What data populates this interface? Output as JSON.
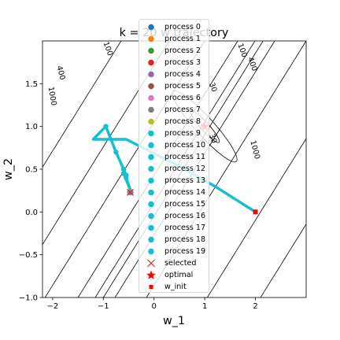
{
  "chart_data": {
    "type": "line",
    "title": "k = 20 w trajectory",
    "xlabel": "w_1",
    "ylabel": "w_2",
    "xlim": [
      -2.2,
      3.0
    ],
    "ylim": [
      -1.0,
      2.0
    ],
    "xticks": [
      -2,
      -1,
      0,
      1,
      2
    ],
    "xtick_labels": [
      "−2",
      "−1",
      "0",
      "1",
      "2"
    ],
    "yticks": [
      -1.0,
      -0.5,
      0.0,
      0.5,
      1.0,
      1.5
    ],
    "ytick_labels": [
      "−1.0",
      "−0.5",
      "0.0",
      "0.5",
      "1.0",
      "1.5"
    ],
    "grid": false,
    "legend_position": "upper-center",
    "contour_levels": [
      30,
      100,
      400,
      1000
    ],
    "contour_labels": [
      {
        "text": "1000",
        "x": -2.05,
        "y": 1.35,
        "rotation": 80
      },
      {
        "text": "400",
        "x": -1.88,
        "y": 1.62,
        "rotation": 75
      },
      {
        "text": "100",
        "x": -0.95,
        "y": 1.9,
        "rotation": 70
      },
      {
        "text": "30",
        "x": 1.12,
        "y": 0.85,
        "rotation": 70
      },
      {
        "text": "30",
        "x": 1.12,
        "y": 1.45,
        "rotation": 70
      },
      {
        "text": "100",
        "x": 1.7,
        "y": 1.88,
        "rotation": 70
      },
      {
        "text": "400",
        "x": 1.9,
        "y": 1.72,
        "rotation": 70
      },
      {
        "text": "1000",
        "x": 1.95,
        "y": 0.72,
        "rotation": 75
      }
    ],
    "series": [
      {
        "name": "process 0",
        "color": "#1f77b4"
      },
      {
        "name": "process 1",
        "color": "#ff7f0e"
      },
      {
        "name": "process 2",
        "color": "#2ca02c"
      },
      {
        "name": "process 3",
        "color": "#d62728"
      },
      {
        "name": "process 4",
        "color": "#9467bd"
      },
      {
        "name": "process 5",
        "color": "#8c564b"
      },
      {
        "name": "process 6",
        "color": "#e377c2"
      },
      {
        "name": "process 7",
        "color": "#7f7f7f"
      },
      {
        "name": "process 8",
        "color": "#bcbd22"
      },
      {
        "name": "process 9",
        "color": "#17becf"
      },
      {
        "name": "process 10",
        "color": "#17becf"
      },
      {
        "name": "process 11",
        "color": "#17becf"
      },
      {
        "name": "process 12",
        "color": "#17becf"
      },
      {
        "name": "process 13",
        "color": "#17becf"
      },
      {
        "name": "process 14",
        "color": "#17becf"
      },
      {
        "name": "process 15",
        "color": "#17becf"
      },
      {
        "name": "process 16",
        "color": "#17becf"
      },
      {
        "name": "process 17",
        "color": "#17becf"
      },
      {
        "name": "process 18",
        "color": "#17becf"
      },
      {
        "name": "process 19",
        "color": "#17becf"
      }
    ],
    "trajectory": {
      "color": "#17becf",
      "points": [
        [
          2.0,
          0.0
        ],
        [
          1.2,
          0.3
        ],
        [
          0.45,
          0.55
        ],
        [
          -0.55,
          0.85
        ],
        [
          -1.2,
          0.85
        ],
        [
          -0.95,
          1.0
        ],
        [
          -0.75,
          0.7
        ],
        [
          -0.6,
          0.5
        ],
        [
          -0.6,
          0.45
        ],
        [
          -0.45,
          0.23
        ],
        [
          -0.55,
          0.4
        ],
        [
          -0.6,
          0.5
        ],
        [
          -0.55,
          0.43
        ]
      ]
    },
    "selected": {
      "name": "selected",
      "x": -0.47,
      "y": 0.23,
      "color": "#e41a1c"
    },
    "optimal": {
      "name": "optimal",
      "x": 1.0,
      "y": 1.0,
      "color": "#ff0000"
    },
    "w_init": {
      "name": "w_init",
      "x": 2.0,
      "y": 0.0,
      "color": "#ff0000"
    }
  }
}
